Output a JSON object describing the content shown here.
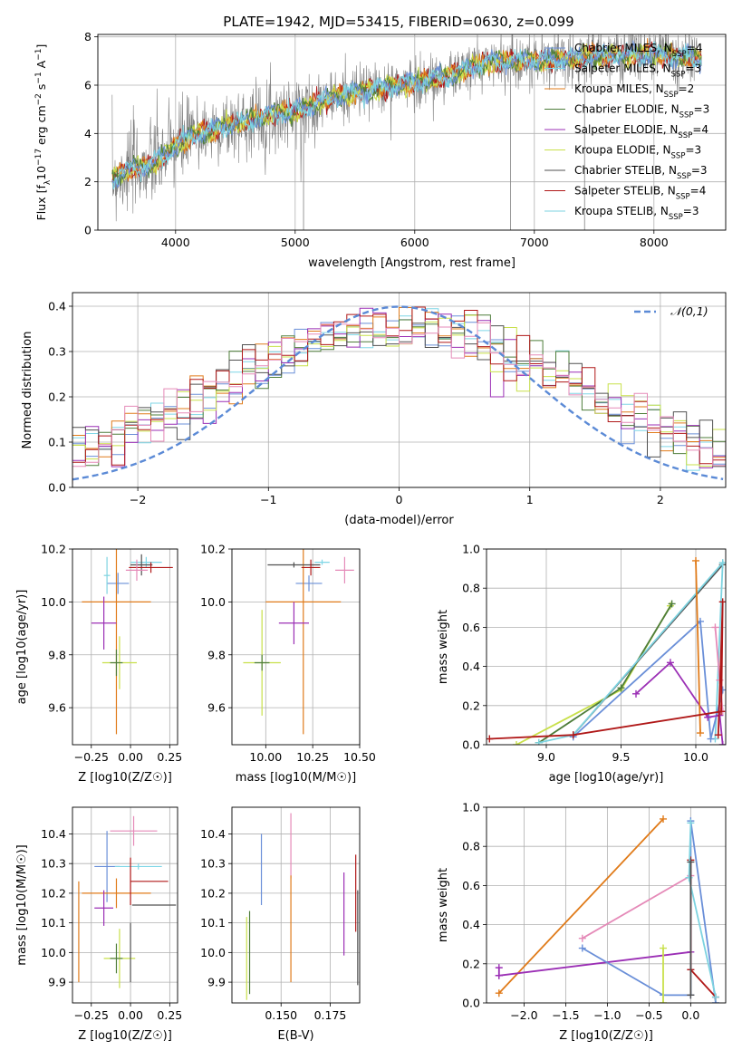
{
  "title": "PLATE=1942, MJD=53415, FIBERID=0630, z=0.099",
  "colors": {
    "chabrier_miles": "#6a8fd8",
    "salpeter_miles": "#7fd6e6",
    "kroupa_miles": "#e07b1a",
    "chabrier_elodie": "#4e7d3a",
    "salpeter_elodie": "#9b2fb5",
    "kroupa_elodie": "#c8e04a",
    "chabrier_stelib": "#505050",
    "salpeter_stelib": "#b01818",
    "kroupa_stelib": "#7dd3e0",
    "pink": "#e58ab8",
    "data": "#808080",
    "gaussian": "#5b8ad6"
  },
  "legend_entries": [
    {
      "label": "Chabrier MILES, N",
      "sub": "SSP",
      "tail": "=4",
      "color_key": "chabrier_miles"
    },
    {
      "label": "Salpeter MILES, N",
      "sub": "SSP",
      "tail": "=3",
      "color_key": "salpeter_miles"
    },
    {
      "label": "Kroupa MILES, N",
      "sub": "SSP",
      "tail": "=2",
      "color_key": "kroupa_miles"
    },
    {
      "label": "Chabrier ELODIE, N",
      "sub": "SSP",
      "tail": "=3",
      "color_key": "chabrier_elodie"
    },
    {
      "label": "Salpeter ELODIE, N",
      "sub": "SSP",
      "tail": "=4",
      "color_key": "salpeter_elodie"
    },
    {
      "label": "Kroupa ELODIE, N",
      "sub": "SSP",
      "tail": "=3",
      "color_key": "kroupa_elodie"
    },
    {
      "label": "Chabrier STELIB, N",
      "sub": "SSP",
      "tail": "=3",
      "color_key": "chabrier_stelib"
    },
    {
      "label": "Salpeter STELIB, N",
      "sub": "SSP",
      "tail": "=4",
      "color_key": "salpeter_stelib"
    },
    {
      "label": "Kroupa STELIB, N",
      "sub": "SSP",
      "tail": "=3",
      "color_key": "kroupa_stelib"
    }
  ],
  "chart_data": [
    {
      "id": "spectrum",
      "type": "line",
      "xlabel": "wavelength [Angstrom, rest frame]",
      "ylabel": "Flux [f_λ 10^-17 erg cm^-2 s^-1 A^-1]",
      "xlim": [
        3350,
        8600
      ],
      "ylim": [
        0,
        8.1
      ],
      "xticks": [
        4000,
        5000,
        6000,
        7000,
        8000
      ],
      "yticks": [
        0,
        2,
        4,
        6,
        8
      ],
      "continuum": [
        [
          3470,
          2.1
        ],
        [
          3600,
          2.5
        ],
        [
          3800,
          2.7
        ],
        [
          4000,
          3.5
        ],
        [
          4200,
          4.0
        ],
        [
          4500,
          4.4
        ],
        [
          4800,
          4.8
        ],
        [
          5000,
          4.9
        ],
        [
          5200,
          5.3
        ],
        [
          5500,
          5.7
        ],
        [
          6000,
          6.1
        ],
        [
          6300,
          6.4
        ],
        [
          6600,
          7.0
        ],
        [
          7000,
          7.0
        ],
        [
          7500,
          7.2
        ],
        [
          8000,
          7.3
        ],
        [
          8400,
          7.1
        ]
      ],
      "drops": [
        {
          "x": 5070,
          "y": 0
        },
        {
          "x": 6800,
          "y": 0
        },
        {
          "x": 7420,
          "y": 0
        }
      ]
    },
    {
      "id": "residuals",
      "type": "histogram",
      "xlabel": "(data-model)/error",
      "ylabel": "Normed distribution",
      "xlim": [
        -2.5,
        2.5
      ],
      "ylim": [
        0,
        0.43
      ],
      "xticks": [
        -2,
        -1,
        0,
        1,
        2
      ],
      "yticks": [
        0.0,
        0.1,
        0.2,
        0.3,
        0.4
      ],
      "legend": "𝒩(0,1)"
    },
    {
      "id": "z_age",
      "type": "errorbar",
      "xlabel": "Z [log10(Z/Z☉)]",
      "ylabel": "age [log10(age/yr)]",
      "xlim": [
        -0.37,
        0.3
      ],
      "ylim": [
        9.46,
        10.2
      ],
      "xticks": [
        -0.25,
        0.0,
        0.25
      ],
      "xticklabels": [
        "−0.25",
        "0.00",
        "0.25"
      ],
      "yticks": [
        9.6,
        9.8,
        10.0,
        10.2
      ],
      "yticklabels": [
        "9.6",
        "9.8",
        "10.0",
        "10.2"
      ],
      "points": [
        {
          "c": "chabrier_miles",
          "x": -0.08,
          "xe": 0.07,
          "y": 10.07,
          "ye": 0.04
        },
        {
          "c": "salpeter_miles",
          "x": 0.1,
          "xe": 0.1,
          "y": 10.15,
          "ye": 0.02
        },
        {
          "c": "kroupa_miles",
          "x": -0.09,
          "xe": 0.22,
          "y": 10.0,
          "ye": 0.5
        },
        {
          "c": "salpeter_elodie",
          "x": -0.17,
          "xe": 0.08,
          "y": 9.92,
          "ye": 0.1
        },
        {
          "c": "kroupa_elodie",
          "x": -0.07,
          "xe": 0.11,
          "y": 9.77,
          "ye": 0.1
        },
        {
          "c": "chabrier_elodie",
          "x": -0.09,
          "xe": 0.04,
          "y": 9.77,
          "ye": 0.05
        },
        {
          "c": "chabrier_stelib",
          "x": 0.07,
          "xe": 0.07,
          "y": 10.14,
          "ye": 0.04
        },
        {
          "c": "salpeter_stelib",
          "x": 0.13,
          "xe": 0.14,
          "y": 10.13,
          "ye": 0.02
        },
        {
          "c": "pink",
          "x": 0.04,
          "xe": 0.07,
          "y": 10.12,
          "ye": 0.04
        },
        {
          "c": "kroupa_stelib",
          "x": -0.15,
          "xe": 0.02,
          "y": 10.1,
          "ye": 0.07
        }
      ]
    },
    {
      "id": "mass_age",
      "type": "errorbar",
      "xlabel": "mass [log10(M/M☉)]",
      "xlim": [
        9.82,
        10.5
      ],
      "ylim": [
        9.46,
        10.2
      ],
      "xticks": [
        10.0,
        10.25,
        10.5
      ],
      "xticklabels": [
        "10.00",
        "10.25",
        "10.50"
      ],
      "yticks": [
        9.6,
        9.8,
        10.0,
        10.2
      ],
      "yticklabels": [
        "9.6",
        "9.8",
        "10.0",
        "10.2"
      ],
      "points": [
        {
          "c": "chabrier_miles",
          "x": 10.23,
          "xe": 0.07,
          "y": 10.07,
          "ye": 0.03
        },
        {
          "c": "kroupa_miles",
          "x": 10.2,
          "xe": 0.2,
          "y": 10.0,
          "ye": 0.5
        },
        {
          "c": "salpeter_elodie",
          "x": 10.15,
          "xe": 0.08,
          "y": 9.92,
          "ye": 0.08
        },
        {
          "c": "kroupa_elodie",
          "x": 9.98,
          "xe": 0.1,
          "y": 9.77,
          "ye": 0.2
        },
        {
          "c": "chabrier_elodie",
          "x": 9.98,
          "xe": 0.04,
          "y": 9.77,
          "ye": 0.03
        },
        {
          "c": "chabrier_stelib",
          "x": 10.15,
          "xe": 0.14,
          "y": 10.14,
          "ye": 0.01
        },
        {
          "c": "salpeter_stelib",
          "x": 10.24,
          "xe": 0.05,
          "y": 10.13,
          "ye": 0.03
        },
        {
          "c": "pink",
          "x": 10.42,
          "xe": 0.05,
          "y": 10.12,
          "ye": 0.05
        },
        {
          "c": "salpeter_miles",
          "x": 10.3,
          "xe": 0.04,
          "y": 10.15,
          "ye": 0.01
        }
      ]
    },
    {
      "id": "age_weight",
      "type": "line",
      "xlabel": "age [log10(age/yr)]",
      "ylabel": "mass weight",
      "xlim": [
        8.6,
        10.2
      ],
      "ylim": [
        0,
        1.0
      ],
      "xticks": [
        9.0,
        9.5,
        10.0
      ],
      "xticklabels": [
        "9.0",
        "9.5",
        "10.0"
      ],
      "yticks": [
        0.0,
        0.2,
        0.4,
        0.6,
        0.8,
        1.0
      ],
      "yticklabels": [
        "0.0",
        "0.2",
        "0.4",
        "0.6",
        "0.8",
        "1.0"
      ],
      "series": [
        {
          "c": "kroupa_elodie",
          "pts": [
            [
              8.8,
              0.0
            ],
            [
              9.5,
              0.28
            ],
            [
              9.83,
              0.71
            ]
          ]
        },
        {
          "c": "chabrier_elodie",
          "pts": [
            [
              8.95,
              0.01
            ],
            [
              9.5,
              0.29
            ],
            [
              9.84,
              0.72
            ]
          ]
        },
        {
          "c": "chabrier_stelib",
          "pts": [
            [
              9.18,
              0.05
            ],
            [
              10.18,
              0.92
            ]
          ]
        },
        {
          "c": "kroupa_stelib",
          "pts": [
            [
              8.95,
              0.01
            ],
            [
              9.18,
              0.05
            ],
            [
              10.18,
              0.93
            ],
            [
              10.13,
              0.03
            ]
          ]
        },
        {
          "c": "chabrier_miles",
          "pts": [
            [
              9.18,
              0.04
            ],
            [
              10.03,
              0.63
            ],
            [
              10.1,
              0.03
            ],
            [
              10.18,
              0.28
            ]
          ]
        },
        {
          "c": "salpeter_elodie",
          "pts": [
            [
              9.6,
              0.26
            ],
            [
              9.83,
              0.42
            ],
            [
              10.08,
              0.14
            ],
            [
              10.16,
              0.15
            ],
            [
              10.18,
              0.0
            ]
          ]
        },
        {
          "c": "kroupa_miles",
          "pts": [
            [
              10.0,
              0.94
            ],
            [
              10.03,
              0.06
            ]
          ]
        },
        {
          "c": "pink",
          "pts": [
            [
              10.13,
              0.6
            ],
            [
              10.16,
              0.33
            ],
            [
              10.18,
              0.17
            ]
          ]
        },
        {
          "c": "salpeter_stelib",
          "pts": [
            [
              8.62,
              0.03
            ],
            [
              9.18,
              0.05
            ],
            [
              10.17,
              0.17
            ],
            [
              10.18,
              0.73
            ],
            [
              10.15,
              0.05
            ]
          ]
        }
      ]
    },
    {
      "id": "z_mass",
      "type": "errorbar",
      "xlabel": "Z [log10(Z/Z☉)]",
      "ylabel": "mass [log10(M/M☉)]",
      "xlim": [
        -0.37,
        0.3
      ],
      "ylim": [
        9.83,
        10.49
      ],
      "xticks": [
        -0.25,
        0.0,
        0.25
      ],
      "xticklabels": [
        "−0.25",
        "0.00",
        "0.25"
      ],
      "yticks": [
        9.9,
        10.0,
        10.1,
        10.2,
        10.3,
        10.4
      ],
      "yticklabels": [
        "9.9",
        "10.0",
        "10.1",
        "10.2",
        "10.3",
        "10.4"
      ],
      "points": [
        {
          "c": "chabrier_miles",
          "x": -0.15,
          "xe": 0.08,
          "y": 10.29,
          "ye": 0.12
        },
        {
          "c": "salpeter_miles",
          "x": 0.05,
          "xe": 0.15,
          "y": 10.29,
          "ye": 0.01
        },
        {
          "c": "kroupa_miles",
          "x": -0.09,
          "xe": 0.22,
          "y": 10.2,
          "ye": 0.05
        },
        {
          "c": "salpeter_elodie",
          "x": -0.17,
          "xe": 0.06,
          "y": 10.15,
          "ye": 0.06
        },
        {
          "c": "kroupa_elodie",
          "x": -0.07,
          "xe": 0.1,
          "y": 9.98,
          "ye": 0.1
        },
        {
          "c": "chabrier_elodie",
          "x": -0.09,
          "xe": 0.04,
          "y": 9.98,
          "ye": 0.05
        },
        {
          "c": "chabrier_stelib",
          "x": 0.15,
          "xe": 0.14,
          "y": 10.16,
          "ye": 0.0
        },
        {
          "c": "salpeter_stelib",
          "x": 0.12,
          "xe": 0.12,
          "y": 10.24,
          "ye": 0.0
        },
        {
          "c": "pink",
          "x": 0.02,
          "xe": 0.15,
          "y": 10.41,
          "ye": 0.05
        },
        {
          "c": "salpeter_stelib",
          "x": 0.0,
          "xe": 0.0,
          "y": 10.24,
          "ye": 0.08
        },
        {
          "c": "chabrier_stelib",
          "x": 0.0,
          "xe": 0.0,
          "y": 10.0,
          "ye": 0.1
        },
        {
          "c": "kroupa_miles",
          "x": -0.33,
          "xe": 0.0,
          "y": 10.07,
          "ye": 0.17
        }
      ]
    },
    {
      "id": "ebv_mass",
      "type": "errorbar",
      "xlabel": "E(B-V)",
      "xlim": [
        0.125,
        0.19
      ],
      "ylim": [
        9.83,
        10.49
      ],
      "xticks": [
        0.15,
        0.175
      ],
      "xticklabels": [
        "0.150",
        "0.175"
      ],
      "yticks": [
        9.9,
        10.0,
        10.1,
        10.2,
        10.3,
        10.4
      ],
      "yticklabels": [
        "9.9",
        "10.0",
        "10.1",
        "10.2",
        "10.3",
        "10.4"
      ],
      "points": [
        {
          "c": "chabrier_miles",
          "x": 0.14,
          "y": 10.28,
          "ye": 0.12
        },
        {
          "c": "pink",
          "x": 0.155,
          "y": 10.36,
          "ye": 0.11
        },
        {
          "c": "kroupa_miles",
          "x": 0.155,
          "y": 10.08,
          "ye": 0.18
        },
        {
          "c": "kroupa_elodie",
          "x": 0.1325,
          "y": 9.98,
          "ye": 0.14
        },
        {
          "c": "chabrier_elodie",
          "x": 0.134,
          "y": 10.0,
          "ye": 0.14
        },
        {
          "c": "salpeter_elodie",
          "x": 0.182,
          "y": 10.13,
          "ye": 0.14
        },
        {
          "c": "salpeter_stelib",
          "x": 0.188,
          "y": 10.2,
          "ye": 0.13
        },
        {
          "c": "chabrier_stelib",
          "x": 0.189,
          "y": 10.05,
          "ye": 0.16
        }
      ]
    },
    {
      "id": "z_weight",
      "type": "line",
      "xlabel": "Z [log10(Z/Z☉)]",
      "ylabel": "mass weight",
      "xlim": [
        -2.45,
        0.42
      ],
      "ylim": [
        0,
        1.0
      ],
      "xticks": [
        -2.0,
        -1.5,
        -1.0,
        -0.5,
        0.0
      ],
      "xticklabels": [
        "−2.0",
        "−1.5",
        "−1.0",
        "−0.5",
        "0.0"
      ],
      "yticks": [
        0.0,
        0.2,
        0.4,
        0.6,
        0.8,
        1.0
      ],
      "yticklabels": [
        "0.0",
        "0.2",
        "0.4",
        "0.6",
        "0.8",
        "1.0"
      ],
      "series": [
        {
          "c": "kroupa_miles",
          "pts": [
            [
              -2.3,
              0.05
            ],
            [
              -0.33,
              0.94
            ]
          ]
        },
        {
          "c": "salpeter_elodie",
          "pts": [
            [
              -2.3,
              0.14
            ],
            [
              0.0,
              0.26
            ]
          ]
        },
        {
          "c": "salpeter_elodie",
          "pts": [
            [
              -2.3,
              0.18
            ],
            [
              -2.3,
              0.14
            ]
          ]
        },
        {
          "c": "pink",
          "pts": [
            [
              -1.3,
              0.33
            ],
            [
              0.0,
              0.65
            ],
            [
              0.0,
              0.17
            ]
          ]
        },
        {
          "c": "chabrier_miles",
          "pts": [
            [
              -1.3,
              0.28
            ],
            [
              -0.33,
              0.04
            ],
            [
              0.0,
              0.04
            ],
            [
              0.0,
              0.93
            ],
            [
              0.3,
              0.0
            ]
          ]
        },
        {
          "c": "kroupa_elodie",
          "pts": [
            [
              -0.33,
              0.28
            ],
            [
              -0.33,
              0.0
            ]
          ]
        },
        {
          "c": "salpeter_stelib",
          "pts": [
            [
              0.0,
              0.73
            ],
            [
              0.0,
              0.17
            ],
            [
              0.3,
              0.03
            ]
          ]
        },
        {
          "c": "kroupa_stelib",
          "pts": [
            [
              0.0,
              0.92
            ],
            [
              -0.02,
              0.64
            ],
            [
              0.3,
              0.03
            ]
          ]
        },
        {
          "c": "chabrier_stelib",
          "pts": [
            [
              0.0,
              0.72
            ],
            [
              0.0,
              0.04
            ]
          ]
        }
      ]
    }
  ]
}
